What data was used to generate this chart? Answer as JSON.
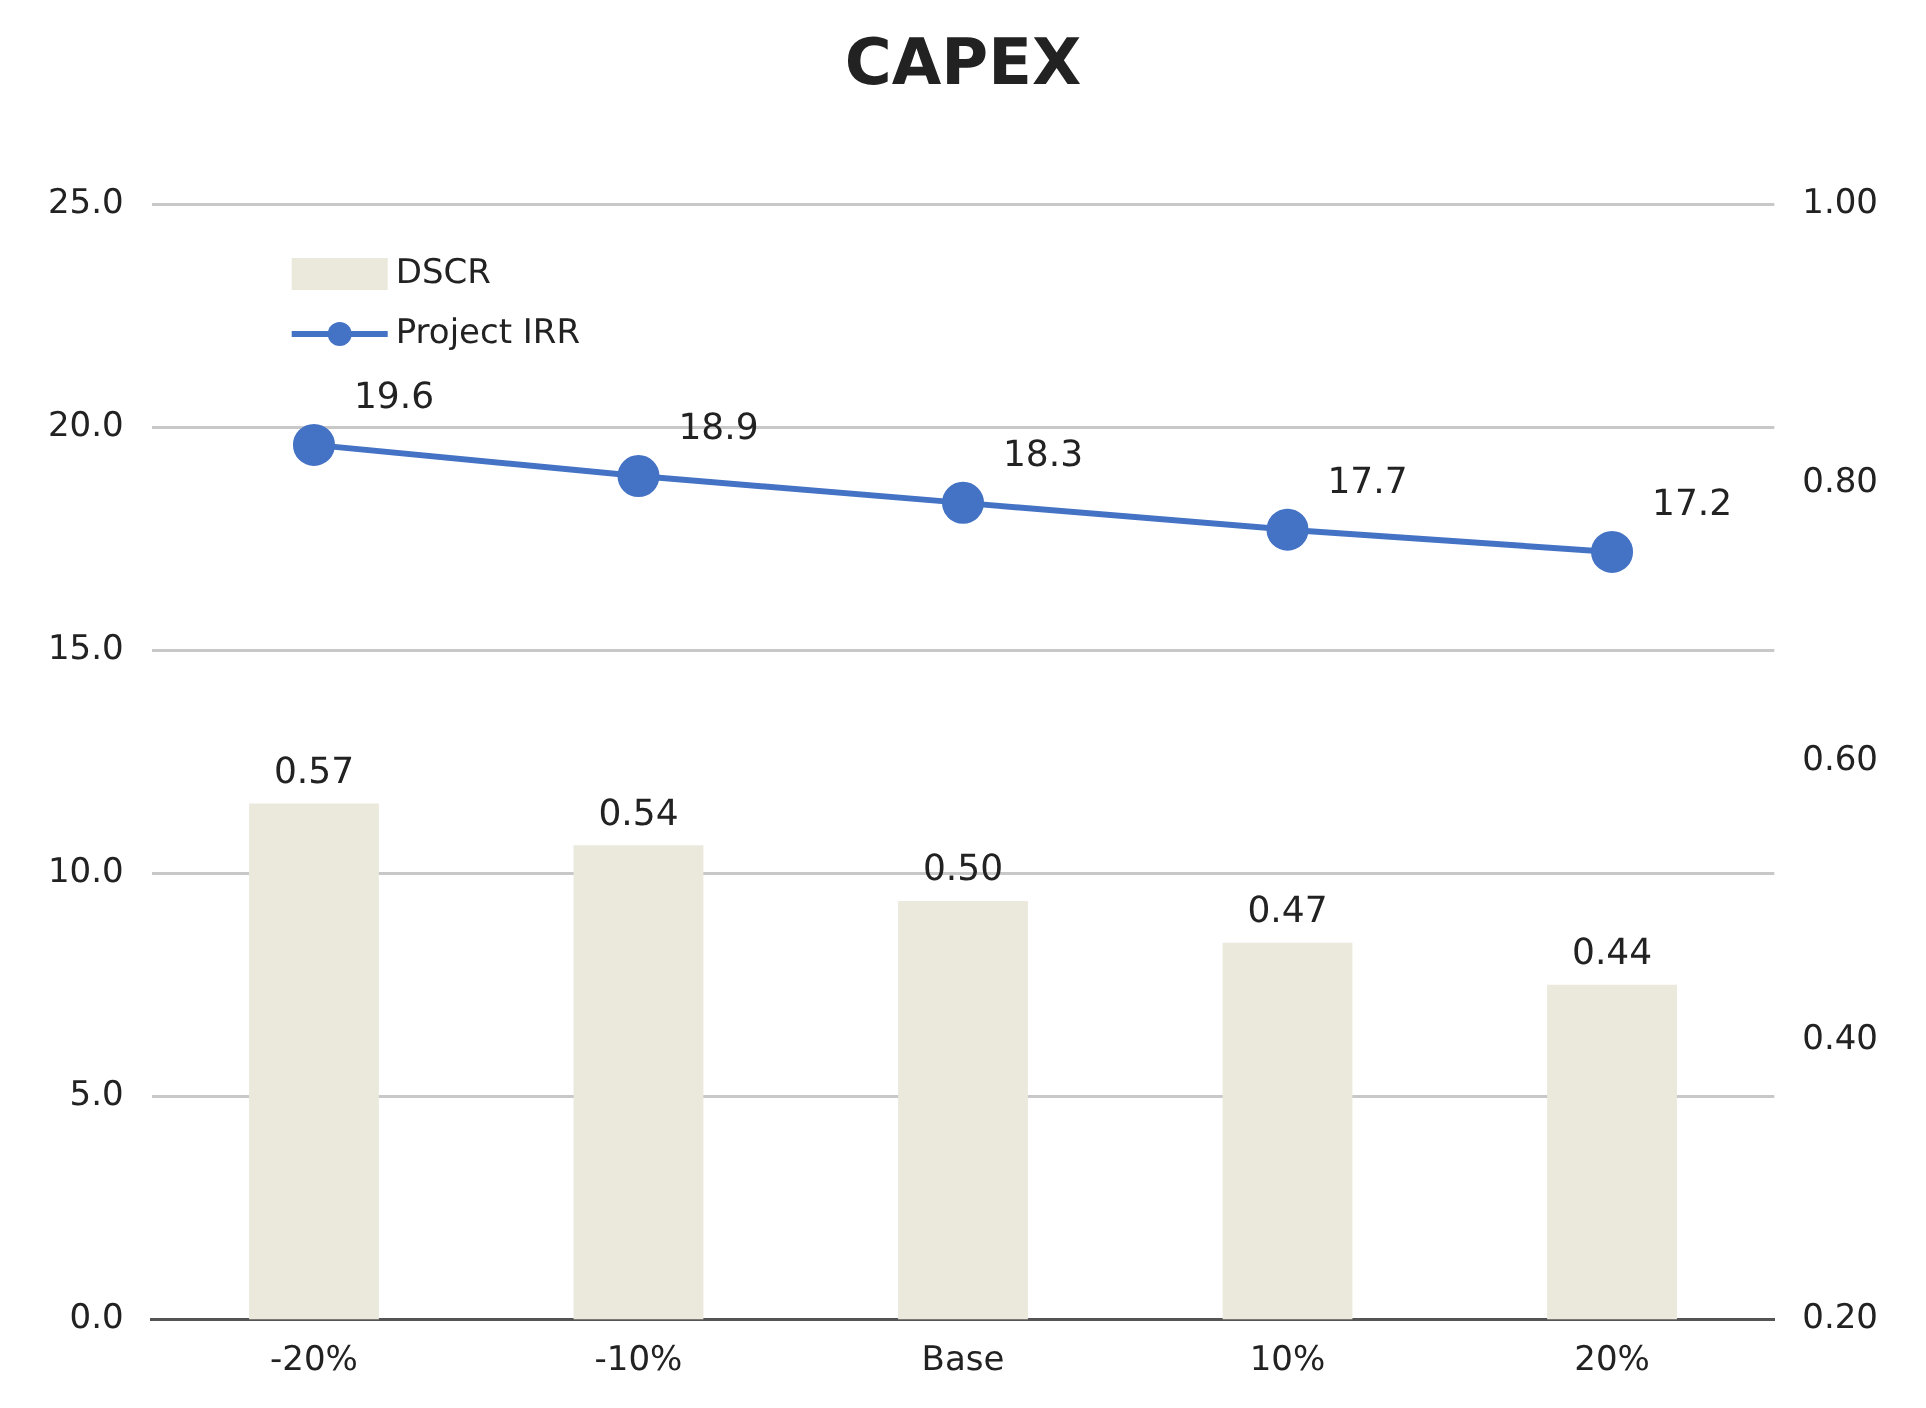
{
  "chart_data": {
    "type": "bar",
    "title": "CAPEX",
    "categories": [
      "-20%",
      "-10%",
      "Base",
      "10%",
      "20%"
    ],
    "series": [
      {
        "name": "DSCR",
        "axis": "y2",
        "color": "#ebe8dc",
        "values": [
          0.57,
          0.54,
          0.5,
          0.47,
          0.44
        ],
        "value_labels": [
          "0.57",
          "0.54",
          "0.50",
          "0.47",
          "0.44"
        ]
      },
      {
        "name": "Project IRR",
        "type": "line",
        "axis": "y",
        "color": "#4472c4",
        "values": [
          19.6,
          18.9,
          18.3,
          17.7,
          17.2
        ]
      }
    ],
    "ylim": [
      0,
      25
    ],
    "yticks": [
      {
        "value": 0,
        "label": "0.0"
      },
      {
        "value": 5,
        "label": "5.0"
      },
      {
        "value": 10,
        "label": "10.0"
      },
      {
        "value": 15,
        "label": "15.0"
      },
      {
        "value": 20,
        "label": "20.0"
      },
      {
        "value": 25,
        "label": "25.0"
      }
    ],
    "y2lim": [
      0.2,
      1.0
    ],
    "y2ticks": [
      {
        "value": 0.2,
        "label": "0.20"
      },
      {
        "value": 0.4,
        "label": "0.40"
      },
      {
        "value": 0.6,
        "label": "0.60"
      },
      {
        "value": 0.8,
        "label": "0.80"
      },
      {
        "value": 1.0,
        "label": "1.00"
      }
    ],
    "data_labels": true,
    "grid": "y",
    "legend": "top left",
    "marker": "circle"
  }
}
